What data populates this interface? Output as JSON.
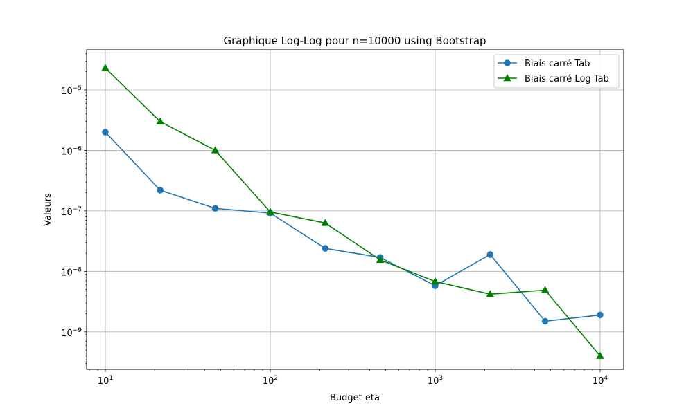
{
  "chart_data": {
    "type": "line",
    "title": "Graphique Log-Log pour n=10000 using Bootstrap",
    "xlabel": "Budget eta",
    "ylabel": "Valeurs",
    "xscale": "log",
    "yscale": "log",
    "xlim": [
      7.7,
      13900
    ],
    "ylim": [
      2.4e-10,
      4.6e-05
    ],
    "grid": true,
    "legend_position": "top-right",
    "x": [
      10,
      21.5,
      46.4,
      100,
      215.4,
      464.2,
      1000,
      2154.4,
      4641.6,
      10000
    ],
    "xticks": [
      {
        "base": "10",
        "exp": "1",
        "value": 10
      },
      {
        "base": "10",
        "exp": "2",
        "value": 100
      },
      {
        "base": "10",
        "exp": "3",
        "value": 1000
      },
      {
        "base": "10",
        "exp": "4",
        "value": 10000
      }
    ],
    "yticks": [
      {
        "base": "10",
        "exp": "−9",
        "value": 1e-09
      },
      {
        "base": "10",
        "exp": "−8",
        "value": 1e-08
      },
      {
        "base": "10",
        "exp": "−7",
        "value": 1e-07
      },
      {
        "base": "10",
        "exp": "−6",
        "value": 1e-06
      },
      {
        "base": "10",
        "exp": "−5",
        "value": 1e-05
      }
    ],
    "series": [
      {
        "name": "Biais carré Tab",
        "color": "#1f77b4",
        "marker": "circle",
        "values": [
          2e-06,
          2.2e-07,
          1.1e-07,
          9.2e-08,
          2.4e-08,
          1.7e-08,
          5.8e-09,
          1.9e-08,
          1.5e-09,
          1.9e-09
        ]
      },
      {
        "name": "Biais carré Log Tab",
        "color": "#008000",
        "marker": "triangle",
        "values": [
          2.3e-05,
          3e-06,
          1e-06,
          9.6e-08,
          6.3e-08,
          1.55e-08,
          6.8e-09,
          4.2e-09,
          4.9e-09,
          4e-10
        ]
      }
    ]
  }
}
